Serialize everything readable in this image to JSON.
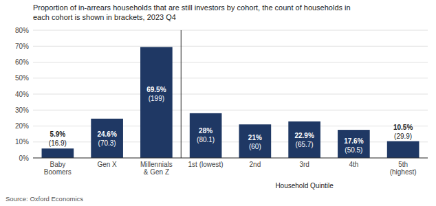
{
  "chart_data": {
    "type": "bar",
    "title": "Proportion of in-arrears households that are still investors by cohort, the count of households in\neach cohort is shown in brackets, 2023 Q4",
    "source": "Source: Oxford Economics",
    "categories": [
      "Baby\nBoomers",
      "Gen X",
      "Millennials\n& Gen Z",
      "1st (lowest)",
      "2nd",
      "3rd",
      "4th",
      "5th\n(highest)"
    ],
    "values": [
      5.9,
      24.6,
      69.5,
      28.0,
      21.0,
      22.9,
      17.6,
      10.5
    ],
    "value_labels": [
      "5.9%",
      "24.6%",
      "69.5%",
      "28%",
      "21%",
      "22.9%",
      "17.6%",
      "10.5%"
    ],
    "counts": [
      16.9,
      70.3,
      199,
      80.1,
      60,
      65.7,
      50.5,
      29.9
    ],
    "count_labels": [
      "(16.9)",
      "(70.3)",
      "(199)",
      "(80.1)",
      "(60)",
      "(65.7)",
      "(50.5)",
      "(29.9)"
    ],
    "annotations": [
      {
        "text": "Household Quintile",
        "from": "1st (lowest)",
        "to": "5th\n(highest)"
      }
    ],
    "color": "#1f3864",
    "data_labels": true,
    "ylim": [
      0,
      80
    ],
    "yticks": [
      {
        "value": 0,
        "label": "0%"
      },
      {
        "value": 10,
        "label": "10%"
      },
      {
        "value": 20,
        "label": "20%"
      },
      {
        "value": 30,
        "label": "30%"
      },
      {
        "value": 40,
        "label": "40%"
      },
      {
        "value": 50,
        "label": "50%"
      },
      {
        "value": 60,
        "label": "60%"
      },
      {
        "value": 70,
        "label": "70%"
      },
      {
        "value": 80,
        "label": "80%"
      }
    ],
    "grid": true
  }
}
